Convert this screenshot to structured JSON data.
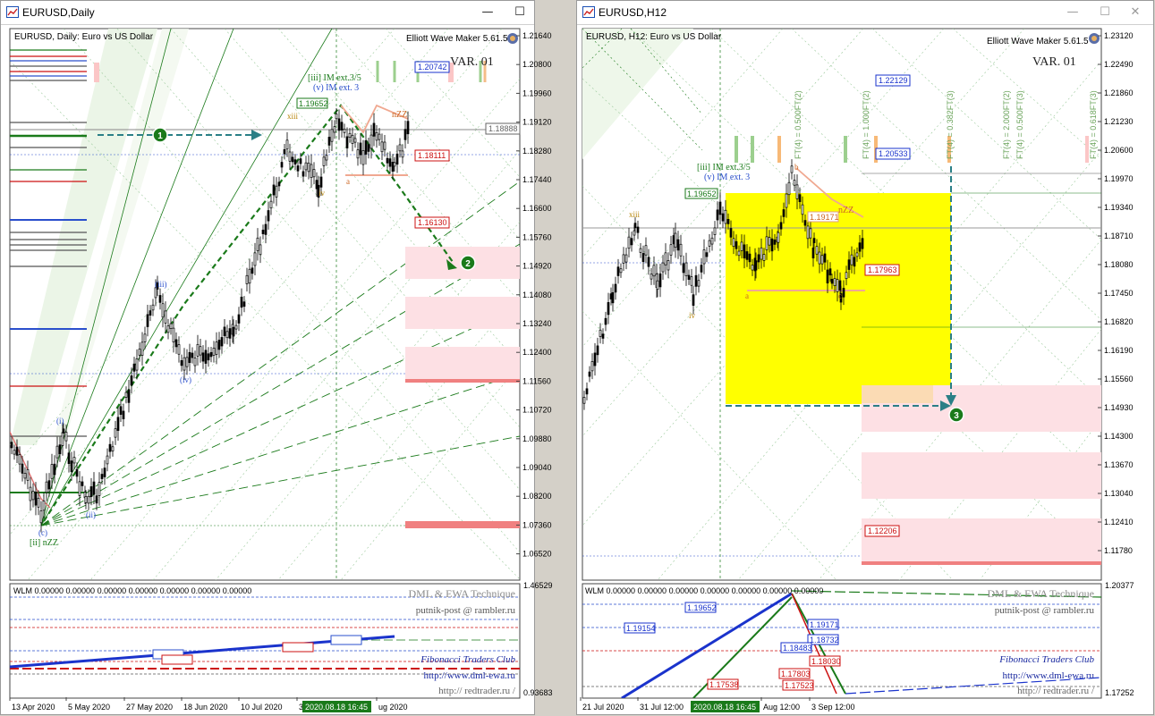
{
  "left": {
    "title": "EURUSD,Daily",
    "header": "EURUSD, Daily:  Euro vs US Dollar",
    "ewm": "Elliott Wave Maker 5.61.5",
    "variant": "VAR. 01",
    "price_ticks": [
      "1.21640",
      "1.20800",
      "1.19960",
      "1.19120",
      "1.18280",
      "1.17440",
      "1.16600",
      "1.15760",
      "1.14920",
      "1.14080",
      "1.13240",
      "1.12400",
      "1.11560",
      "1.10720",
      "1.09880",
      "1.09040",
      "1.08200",
      "1.07360",
      "1.06520"
    ],
    "price_tags": [
      {
        "text": "1.20742",
        "color": "#1a33cc"
      },
      {
        "text": "1.18888",
        "color": "#666666"
      },
      {
        "text": "1.18111",
        "color": "#cc1111"
      },
      {
        "text": "1.16130",
        "color": "#cc1111"
      }
    ],
    "wave_labels": {
      "iii_ext": "[iii] IM ext.3/5",
      "v_ext": "(v) IM ext. 3",
      "high": "1.19652",
      "nzz": "nZZ",
      "ii_nzz": "[ii] nZZ",
      "xiii": "xiii",
      "iv": "iv",
      "a": "a",
      "iii": "(iii)",
      "iv2": "(iv)",
      "i": "(i)",
      "ii": "(ii)",
      "c": "(c)"
    },
    "markers": {
      "m1": "1",
      "m2": "2"
    },
    "indicator": {
      "text": "WLM 0.00000 0.00000 0.00000 0.00000 0.00000 0.00000 0.00000",
      "ticks": [
        "1.46529",
        "0.93683"
      ],
      "brand1": "DML & EWA Technique",
      "brand2": "putnik-post @ rambler.ru",
      "club": "Fibonacci    Traders    Club",
      "url1": "http://www.dml-ewa.ru",
      "url2": "http://  redtrader.ru  /"
    },
    "dates": [
      "13 Apr 2020",
      "5 May 2020",
      "27 May 2020",
      "18 Jun 2020",
      "10 Jul 2020",
      "3",
      "ug 2020"
    ],
    "date_highlight": "2020.08.18 16:45"
  },
  "right": {
    "title": "EURUSD,H12",
    "header": "EURUSD, H12:  Euro vs US Dollar",
    "ewm": "Elliott Wave Maker 5.61.5",
    "variant": "VAR. 01",
    "price_ticks": [
      "1.23120",
      "1.22490",
      "1.21860",
      "1.21230",
      "1.20600",
      "1.19970",
      "1.19340",
      "1.18710",
      "1.18080",
      "1.17450",
      "1.16820",
      "1.16190",
      "1.15560",
      "1.14930",
      "1.14300",
      "1.13670",
      "1.13040",
      "1.12410",
      "1.11780"
    ],
    "price_tags": [
      {
        "text": "1.22129",
        "color": "#1a33cc"
      },
      {
        "text": "1.20533",
        "color": "#1a33cc"
      },
      {
        "text": "1.17963",
        "color": "#cc1111"
      },
      {
        "text": "1.12206",
        "color": "#cc1111"
      }
    ],
    "fib_labels": [
      "FT(4) = 0.500FT(2)",
      "FT(4) = 1.000FT(2)",
      "FT(4) = 0.382FT(3)",
      "FT(4) = 2.000FT(2)",
      "FT(4) = 0.500FT(3)",
      "FT(4) = 0.618FT(3)"
    ],
    "wave_labels": {
      "iii_ext": "[iii] IM ext.3/5",
      "v_ext": "(v) IM ext. 3",
      "high": "1.19652",
      "nzz": "nZZ",
      "xiii": "xiii",
      "iv": "iv",
      "a": "a",
      "c": "c",
      "b": "b",
      "level": "1.19171"
    },
    "markers": {
      "m3": "3"
    },
    "indicator": {
      "text": "WLM 0.00000 0.00000 0.00000 0.00000 0.00000 0.00000 0.00000",
      "ticks": [
        "1.20377",
        "1.17252"
      ],
      "brand1": "DML & EWA Technique",
      "brand2": "putnik-post @ rambler.ru",
      "club": "Fibonacci    Traders    Club",
      "url1": "http://www.dml-ewa.ru",
      "url2": "http://  redtrader.ru  /",
      "tags": [
        "1.19154",
        "1.19652",
        "1.19171",
        "1.18732",
        "1.18483",
        "1.18030",
        "1.17803",
        "1.17538",
        "1.17523"
      ]
    },
    "dates": [
      "21 Jul 2020",
      "31 Jul 12:00",
      "Aug 12:00",
      "3 Sep 12:00"
    ],
    "date_highlight": "2020.08.18 16:45"
  },
  "window_buttons": {
    "minimize": "—",
    "maximize": "☐",
    "close": "✕"
  },
  "colors": {
    "bull_green": "#1a7a1a",
    "bear_red": "#cc1111",
    "highlight_yellow": "#ffff00",
    "zone_pink": "#fde0e4",
    "date_tag_green": "#1a7a1a"
  }
}
